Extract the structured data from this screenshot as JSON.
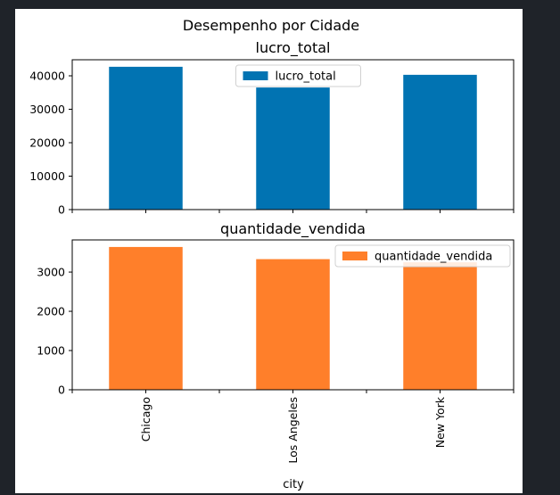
{
  "figure": {
    "title": "Desempenho por Cidade",
    "xlabel": "city"
  },
  "chart_data": [
    {
      "type": "bar",
      "title": "lucro_total",
      "categories": [
        "Chicago",
        "Los Angeles",
        "New York"
      ],
      "series": [
        {
          "name": "lucro_total",
          "values": [
            42700,
            36500,
            40300
          ],
          "color": "#0173b2"
        }
      ],
      "ylim": [
        0,
        44800
      ],
      "yticks": [
        0,
        10000,
        20000,
        30000,
        40000
      ],
      "legend": "top-center",
      "grid": false
    },
    {
      "type": "bar",
      "title": "quantidade_vendida",
      "categories": [
        "Chicago",
        "Los Angeles",
        "New York"
      ],
      "series": [
        {
          "name": "quantidade_vendida",
          "values": [
            3640,
            3330,
            3250
          ],
          "color": "#ff7f2a"
        }
      ],
      "ylim": [
        0,
        3820
      ],
      "yticks": [
        0,
        1000,
        2000,
        3000
      ],
      "legend": "top-right",
      "grid": false
    }
  ]
}
